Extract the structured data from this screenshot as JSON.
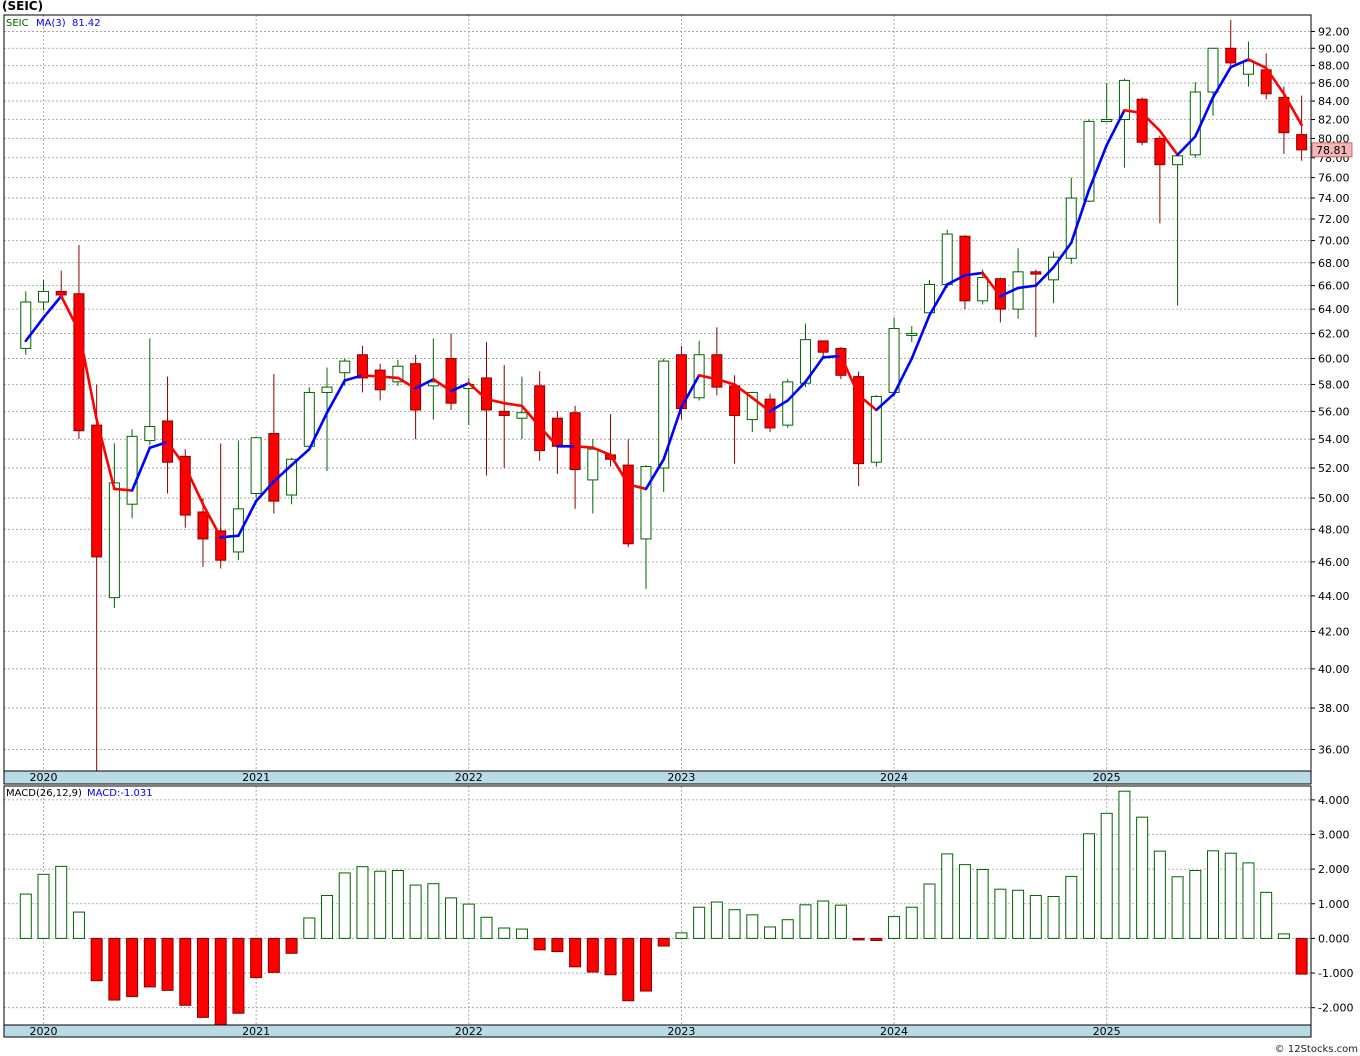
{
  "header": {
    "title": "(SEIC)"
  },
  "credit": "© 12Stocks.com",
  "price_panel": {
    "legend_symbol": "SEIC",
    "legend_ma": "MA(3)",
    "legend_ma_value": "81.42",
    "last_price_label": "78.81",
    "y_ticks": [
      "36.00",
      "38.00",
      "40.00",
      "42.00",
      "44.00",
      "46.00",
      "48.00",
      "50.00",
      "52.00",
      "54.00",
      "56.00",
      "58.00",
      "60.00",
      "62.00",
      "64.00",
      "66.00",
      "68.00",
      "70.00",
      "72.00",
      "74.00",
      "76.00",
      "78.00",
      "80.00",
      "82.00",
      "84.00",
      "86.00",
      "88.00",
      "90.00",
      "92.00"
    ]
  },
  "macd_panel": {
    "legend_label": "MACD(26,12,9)",
    "legend_value": "MACD:-1.031",
    "y_ticks": [
      "-2.000",
      "-1.000",
      "0.000",
      "1.000",
      "2.000",
      "3.000",
      "4.000"
    ]
  },
  "year_labels": [
    "2020",
    "2021",
    "2022",
    "2023",
    "2024",
    "2025"
  ],
  "colors": {
    "up": "#006400",
    "down": "#ff0000",
    "ma_up": "#0000ff",
    "ma_down": "#ff0000",
    "axis_band": "#b9dbe6",
    "last_price_bg": "#f4b6b6"
  },
  "chart_data": [
    {
      "type": "candlestick",
      "title": "(SEIC)",
      "interval": "monthly",
      "ylim": [
        35,
        94
      ],
      "price_scale": "log",
      "grid": true,
      "candles": [
        {
          "date": "2019-12",
          "o": 60.8,
          "h": 65.5,
          "l": 60.3,
          "c": 64.6
        },
        {
          "date": "2020-01",
          "o": 64.6,
          "h": 66.5,
          "l": 63.9,
          "c": 65.5
        },
        {
          "date": "2020-02",
          "o": 65.5,
          "h": 67.3,
          "l": 64.9,
          "c": 65.2
        },
        {
          "date": "2020-03",
          "o": 65.3,
          "h": 69.6,
          "l": 54.0,
          "c": 54.6
        },
        {
          "date": "2020-04",
          "o": 55.0,
          "h": 58.0,
          "l": 35.0,
          "c": 46.3
        },
        {
          "date": "2020-05",
          "o": 43.9,
          "h": 53.7,
          "l": 43.3,
          "c": 51.0
        },
        {
          "date": "2020-06",
          "o": 49.6,
          "h": 54.7,
          "l": 48.7,
          "c": 54.2
        },
        {
          "date": "2020-07",
          "o": 53.9,
          "h": 61.6,
          "l": 53.6,
          "c": 54.9
        },
        {
          "date": "2020-08",
          "o": 55.3,
          "h": 58.6,
          "l": 50.3,
          "c": 52.4
        },
        {
          "date": "2020-09",
          "o": 52.8,
          "h": 53.3,
          "l": 48.1,
          "c": 48.9
        },
        {
          "date": "2020-10",
          "o": 49.1,
          "h": 50.0,
          "l": 45.7,
          "c": 47.4
        },
        {
          "date": "2020-11",
          "o": 47.9,
          "h": 53.7,
          "l": 45.6,
          "c": 46.1
        },
        {
          "date": "2020-12",
          "o": 46.6,
          "h": 53.9,
          "l": 46.1,
          "c": 49.3
        },
        {
          "date": "2021-01",
          "o": 50.3,
          "h": 54.1,
          "l": 50.0,
          "c": 54.1
        },
        {
          "date": "2021-02",
          "o": 54.4,
          "h": 58.8,
          "l": 49.0,
          "c": 49.8
        },
        {
          "date": "2021-03",
          "o": 50.2,
          "h": 52.7,
          "l": 49.6,
          "c": 52.6
        },
        {
          "date": "2021-04",
          "o": 53.5,
          "h": 57.8,
          "l": 53.2,
          "c": 57.4
        },
        {
          "date": "2021-05",
          "o": 57.4,
          "h": 59.3,
          "l": 51.8,
          "c": 57.8
        },
        {
          "date": "2021-06",
          "o": 58.9,
          "h": 60.0,
          "l": 57.9,
          "c": 59.8
        },
        {
          "date": "2021-07",
          "o": 60.3,
          "h": 61.0,
          "l": 57.4,
          "c": 58.5
        },
        {
          "date": "2021-08",
          "o": 59.1,
          "h": 59.6,
          "l": 56.8,
          "c": 57.6
        },
        {
          "date": "2021-09",
          "o": 58.2,
          "h": 59.9,
          "l": 57.9,
          "c": 59.4
        },
        {
          "date": "2021-10",
          "o": 59.6,
          "h": 60.3,
          "l": 54.0,
          "c": 56.1
        },
        {
          "date": "2021-11",
          "o": 57.9,
          "h": 61.6,
          "l": 55.4,
          "c": 58.2
        },
        {
          "date": "2021-12",
          "o": 60.0,
          "h": 62.0,
          "l": 56.1,
          "c": 56.6
        },
        {
          "date": "2022-01",
          "o": 57.7,
          "h": 58.5,
          "l": 55.0,
          "c": 58.0
        },
        {
          "date": "2022-02",
          "o": 58.5,
          "h": 61.3,
          "l": 51.5,
          "c": 56.1
        },
        {
          "date": "2022-03",
          "o": 56.0,
          "h": 59.5,
          "l": 52.0,
          "c": 55.7
        },
        {
          "date": "2022-04",
          "o": 55.5,
          "h": 58.6,
          "l": 54.0,
          "c": 55.9
        },
        {
          "date": "2022-05",
          "o": 57.9,
          "h": 59.0,
          "l": 52.5,
          "c": 53.2
        },
        {
          "date": "2022-06",
          "o": 55.5,
          "h": 56.0,
          "l": 51.6,
          "c": 53.5
        },
        {
          "date": "2022-07",
          "o": 55.9,
          "h": 56.4,
          "l": 49.3,
          "c": 51.9
        },
        {
          "date": "2022-08",
          "o": 51.2,
          "h": 54.0,
          "l": 49.0,
          "c": 53.3
        },
        {
          "date": "2022-09",
          "o": 52.9,
          "h": 55.8,
          "l": 52.1,
          "c": 52.6
        },
        {
          "date": "2022-10",
          "o": 52.2,
          "h": 54.0,
          "l": 46.9,
          "c": 47.1
        },
        {
          "date": "2022-11",
          "o": 47.4,
          "h": 52.2,
          "l": 44.4,
          "c": 52.1
        },
        {
          "date": "2022-12",
          "o": 52.0,
          "h": 60.0,
          "l": 50.4,
          "c": 59.8
        },
        {
          "date": "2023-01",
          "o": 60.3,
          "h": 61.0,
          "l": 55.4,
          "c": 56.2
        },
        {
          "date": "2023-02",
          "o": 57.0,
          "h": 61.4,
          "l": 56.8,
          "c": 60.3
        },
        {
          "date": "2023-03",
          "o": 60.3,
          "h": 62.5,
          "l": 57.2,
          "c": 57.8
        },
        {
          "date": "2023-04",
          "o": 57.9,
          "h": 58.7,
          "l": 52.3,
          "c": 55.7
        },
        {
          "date": "2023-05",
          "o": 55.4,
          "h": 57.4,
          "l": 54.5,
          "c": 57.4
        },
        {
          "date": "2023-06",
          "o": 56.9,
          "h": 57.3,
          "l": 54.5,
          "c": 54.8
        },
        {
          "date": "2023-07",
          "o": 55.0,
          "h": 58.4,
          "l": 54.8,
          "c": 58.2
        },
        {
          "date": "2023-08",
          "o": 58.1,
          "h": 62.8,
          "l": 57.8,
          "c": 61.5
        },
        {
          "date": "2023-09",
          "o": 61.4,
          "h": 61.4,
          "l": 60.1,
          "c": 60.5
        },
        {
          "date": "2023-10",
          "o": 60.8,
          "h": 60.9,
          "l": 58.4,
          "c": 58.7
        },
        {
          "date": "2023-11",
          "o": 58.6,
          "h": 59.0,
          "l": 50.8,
          "c": 52.3
        },
        {
          "date": "2023-12",
          "o": 52.4,
          "h": 57.2,
          "l": 52.1,
          "c": 57.1
        },
        {
          "date": "2024-01",
          "o": 57.4,
          "h": 63.3,
          "l": 57.1,
          "c": 62.4
        },
        {
          "date": "2024-02",
          "o": 61.9,
          "h": 62.6,
          "l": 61.3,
          "c": 62.0
        },
        {
          "date": "2024-03",
          "o": 63.7,
          "h": 66.5,
          "l": 63.3,
          "c": 66.1
        },
        {
          "date": "2024-04",
          "o": 66.1,
          "h": 71.0,
          "l": 65.8,
          "c": 70.6
        },
        {
          "date": "2024-05",
          "o": 70.4,
          "h": 70.5,
          "l": 64.0,
          "c": 64.7
        },
        {
          "date": "2024-06",
          "o": 64.7,
          "h": 67.4,
          "l": 64.4,
          "c": 66.7
        },
        {
          "date": "2024-07",
          "o": 66.6,
          "h": 66.7,
          "l": 62.9,
          "c": 64.0
        },
        {
          "date": "2024-08",
          "o": 64.0,
          "h": 69.3,
          "l": 63.2,
          "c": 67.2
        },
        {
          "date": "2024-09",
          "o": 67.2,
          "h": 67.4,
          "l": 61.7,
          "c": 67.0
        },
        {
          "date": "2024-10",
          "o": 66.5,
          "h": 69.0,
          "l": 64.5,
          "c": 68.5
        },
        {
          "date": "2024-11",
          "o": 68.4,
          "h": 76.0,
          "l": 67.9,
          "c": 74.0
        },
        {
          "date": "2024-12",
          "o": 73.7,
          "h": 82.0,
          "l": 73.6,
          "c": 81.8
        },
        {
          "date": "2025-01",
          "o": 82.0,
          "h": 86.0,
          "l": 81.7,
          "c": 82.0
        },
        {
          "date": "2025-02",
          "o": 82.0,
          "h": 86.5,
          "l": 77.0,
          "c": 86.3
        },
        {
          "date": "2025-03",
          "o": 84.2,
          "h": 84.4,
          "l": 79.3,
          "c": 79.6
        },
        {
          "date": "2025-04",
          "o": 80.0,
          "h": 80.3,
          "l": 71.6,
          "c": 77.3
        },
        {
          "date": "2025-05",
          "o": 77.3,
          "h": 78.3,
          "l": 64.3,
          "c": 78.2
        },
        {
          "date": "2025-06",
          "o": 78.3,
          "h": 86.1,
          "l": 78.0,
          "c": 85.0
        },
        {
          "date": "2025-07",
          "o": 85.0,
          "h": 90.0,
          "l": 82.4,
          "c": 90.0
        },
        {
          "date": "2025-08",
          "o": 90.0,
          "h": 93.4,
          "l": 88.0,
          "c": 88.3
        },
        {
          "date": "2025-09",
          "o": 87.0,
          "h": 90.8,
          "l": 85.6,
          "c": 88.5
        },
        {
          "date": "2025-10",
          "o": 87.5,
          "h": 89.4,
          "l": 84.2,
          "c": 84.8
        },
        {
          "date": "2025-11",
          "o": 84.4,
          "h": 85.6,
          "l": 78.4,
          "c": 80.6
        },
        {
          "date": "2025-12",
          "o": 80.4,
          "h": 84.6,
          "l": 77.7,
          "c": 78.81
        }
      ],
      "ma3": [
        61.4,
        63.3,
        65.1,
        62.2,
        55.4,
        50.6,
        50.5,
        53.4,
        53.8,
        52.1,
        49.6,
        47.5,
        47.6,
        49.8,
        51.1,
        52.2,
        53.3,
        55.9,
        58.3,
        58.7,
        58.6,
        58.5,
        57.7,
        58.4,
        57.5,
        58.1,
        56.9,
        56.6,
        56.4,
        54.9,
        53.5,
        53.5,
        53.4,
        52.9,
        50.9,
        50.6,
        52.6,
        56.3,
        58.7,
        58.4,
        58.0,
        57.0,
        56.0,
        56.8,
        58.2,
        60.1,
        60.2,
        57.2,
        56.1,
        57.3,
        60.0,
        63.5,
        66.1,
        66.9,
        67.1,
        65.1,
        65.8,
        66.0,
        67.6,
        69.8,
        74.8,
        79.3,
        83.0,
        82.7,
        80.8,
        78.3,
        80.2,
        84.4,
        87.8,
        88.7,
        87.7,
        84.8,
        81.42
      ]
    },
    {
      "type": "bar",
      "title": "MACD(26,12,9)",
      "ylim": [
        -2.5,
        4.4
      ],
      "values": [
        1.28,
        1.85,
        2.08,
        0.76,
        -1.22,
        -1.78,
        -1.68,
        -1.4,
        -1.5,
        -1.93,
        -2.28,
        -2.55,
        -2.16,
        -1.13,
        -0.98,
        -0.43,
        0.59,
        1.24,
        1.89,
        2.07,
        1.94,
        1.96,
        1.54,
        1.58,
        1.17,
        0.99,
        0.61,
        0.3,
        0.27,
        -0.33,
        -0.38,
        -0.82,
        -0.97,
        -1.05,
        -1.8,
        -1.52,
        -0.22,
        0.16,
        0.9,
        1.05,
        0.83,
        0.68,
        0.33,
        0.54,
        0.97,
        1.08,
        0.96,
        -0.03,
        -0.06,
        0.63,
        0.9,
        1.57,
        2.44,
        2.13,
        1.99,
        1.42,
        1.39,
        1.24,
        1.21,
        1.79,
        3.02,
        3.61,
        4.25,
        3.5,
        2.52,
        1.78,
        1.96,
        2.53,
        2.46,
        2.18,
        1.33,
        0.13,
        -1.031
      ]
    }
  ]
}
